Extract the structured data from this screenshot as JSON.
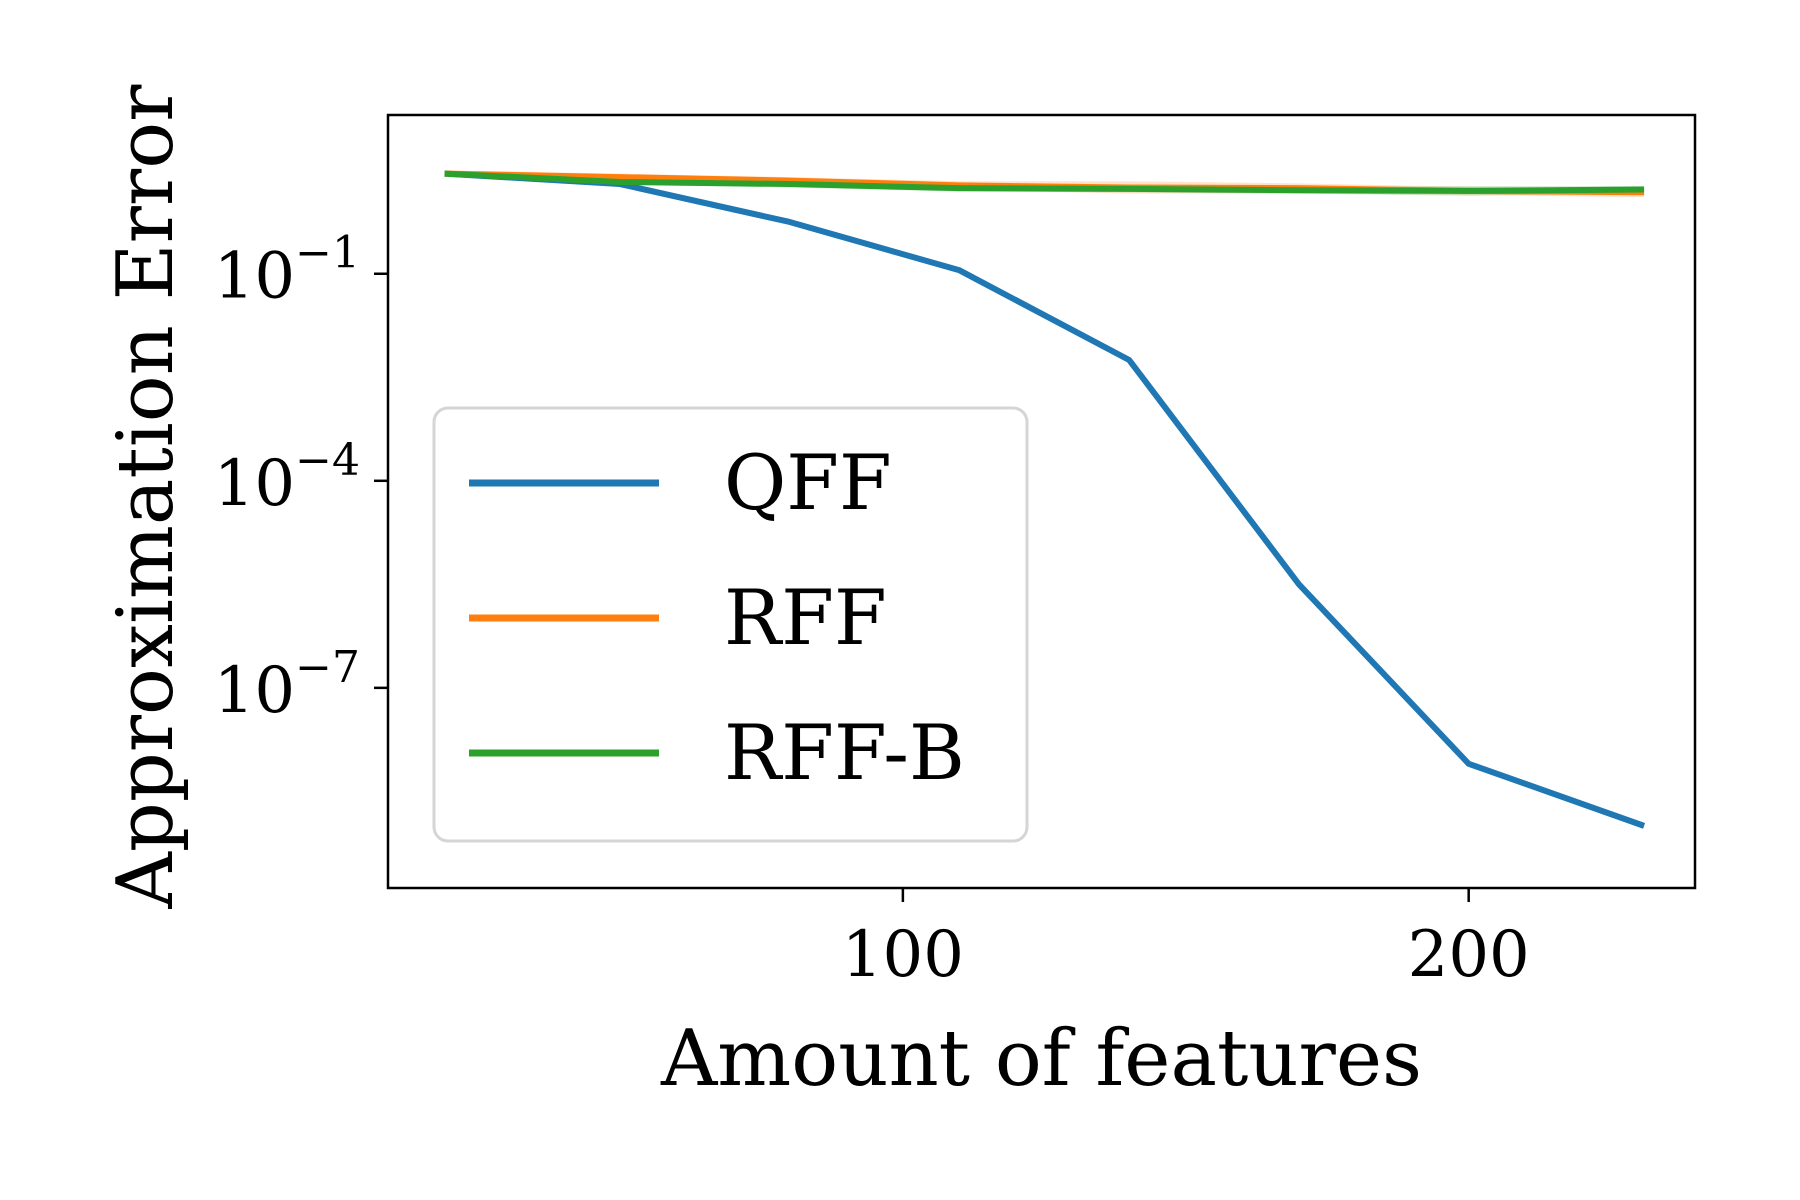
{
  "chart_data": {
    "type": "line",
    "title": "",
    "xlabel": "Amount of features",
    "ylabel": "Approximation Error",
    "yscale": "log",
    "xlim": [
      9,
      240
    ],
    "ylim_exp": [
      -9.9,
      1.3
    ],
    "x_ticks": [
      {
        "value": 100,
        "label": "100"
      },
      {
        "value": 200,
        "label": "200"
      }
    ],
    "y_ticks": [
      {
        "exp": -1,
        "base": "10",
        "sup": "−1"
      },
      {
        "exp": -4,
        "base": "10",
        "sup": "−4"
      },
      {
        "exp": -7,
        "base": "10",
        "sup": "−7"
      }
    ],
    "grid": false,
    "legend_position": "center-left",
    "series": [
      {
        "name": "QFF",
        "color": "#1f77b4",
        "x": [
          19,
          50,
          80,
          110,
          140,
          170,
          200,
          231
        ],
        "log10_y": [
          0.45,
          0.3,
          -0.25,
          -0.95,
          -2.25,
          -5.5,
          -8.1,
          -9.0
        ],
        "band": null
      },
      {
        "name": "RFF",
        "color": "#ff7f0e",
        "x": [
          19,
          50,
          80,
          110,
          140,
          170,
          200,
          231
        ],
        "log10_y": [
          0.45,
          0.4,
          0.35,
          0.28,
          0.25,
          0.24,
          0.2,
          0.18
        ],
        "band": [
          0.05,
          0.05,
          0.05,
          0.06,
          0.09,
          0.07,
          0.06,
          0.07
        ]
      },
      {
        "name": "RFF-B",
        "color": "#2ca02c",
        "x": [
          19,
          50,
          80,
          110,
          140,
          170,
          200,
          231
        ],
        "log10_y": [
          0.45,
          0.33,
          0.3,
          0.24,
          0.23,
          0.21,
          0.2,
          0.22
        ],
        "band": [
          0.04,
          0.04,
          0.05,
          0.05,
          0.05,
          0.05,
          0.07,
          0.05
        ]
      }
    ]
  }
}
